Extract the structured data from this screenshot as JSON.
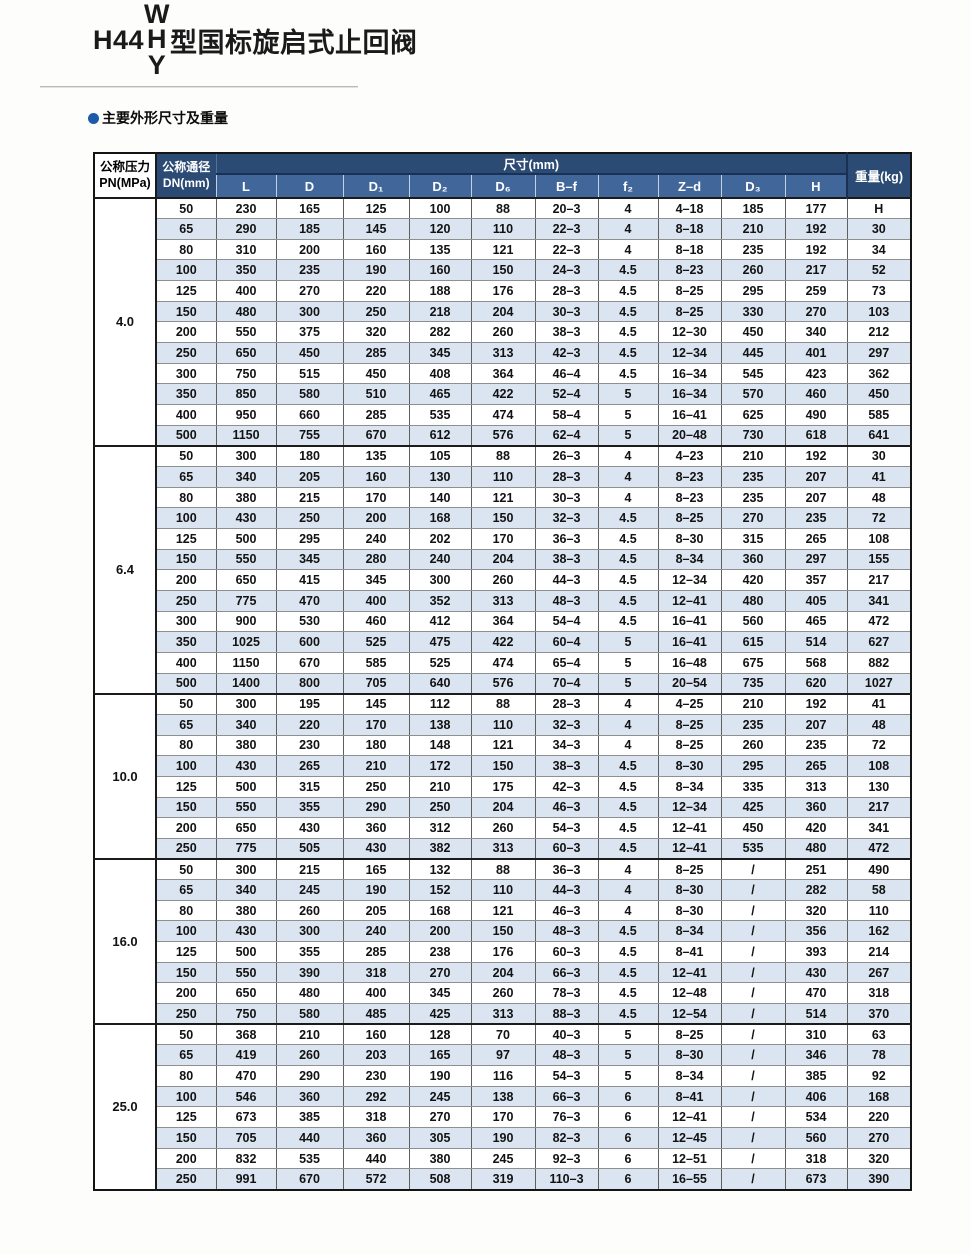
{
  "page": {
    "title_prefix": "H44",
    "title_stack": {
      "top": "W",
      "middle": "H",
      "bottom": "Y"
    },
    "title_suffix": "型国标旋启式止回阀",
    "section_heading": "主要外形尺寸及重量"
  },
  "colors": {
    "header_dark_navy": "#2b4a74",
    "header_medium_blue": "#40669a",
    "row_alternate_blue": "#dbe5f1",
    "bullet_blue": "#1c5ba8",
    "border_black": "#141414"
  },
  "icons": {
    "bullet": "filled-circle"
  },
  "table": {
    "pressure_header_line1": "公称压力",
    "pressure_header_line2": "PN(MPa)",
    "dn_header_line1": "公称通径",
    "dn_header_line2": "DN(mm)",
    "size_header": "尺寸(mm)",
    "weight_header": "重量(kg)",
    "dim_columns": [
      "L",
      "D",
      "D₁",
      "D₂",
      "D₆",
      "B–f",
      "f₂",
      "Z–d",
      "D₃",
      "H"
    ],
    "groups": [
      {
        "pressure": "4.0",
        "rows": [
          [
            "50",
            "230",
            "165",
            "125",
            "100",
            "88",
            "20–3",
            "4",
            "4–18",
            "185",
            "177",
            "H"
          ],
          [
            "65",
            "290",
            "185",
            "145",
            "120",
            "110",
            "22–3",
            "4",
            "8–18",
            "210",
            "192",
            "30"
          ],
          [
            "80",
            "310",
            "200",
            "160",
            "135",
            "121",
            "22–3",
            "4",
            "8–18",
            "235",
            "192",
            "34"
          ],
          [
            "100",
            "350",
            "235",
            "190",
            "160",
            "150",
            "24–3",
            "4.5",
            "8–23",
            "260",
            "217",
            "52"
          ],
          [
            "125",
            "400",
            "270",
            "220",
            "188",
            "176",
            "28–3",
            "4.5",
            "8–25",
            "295",
            "259",
            "73"
          ],
          [
            "150",
            "480",
            "300",
            "250",
            "218",
            "204",
            "30–3",
            "4.5",
            "8–25",
            "330",
            "270",
            "103"
          ],
          [
            "200",
            "550",
            "375",
            "320",
            "282",
            "260",
            "38–3",
            "4.5",
            "12–30",
            "450",
            "340",
            "212"
          ],
          [
            "250",
            "650",
            "450",
            "285",
            "345",
            "313",
            "42–3",
            "4.5",
            "12–34",
            "445",
            "401",
            "297"
          ],
          [
            "300",
            "750",
            "515",
            "450",
            "408",
            "364",
            "46–4",
            "4.5",
            "16–34",
            "545",
            "423",
            "362"
          ],
          [
            "350",
            "850",
            "580",
            "510",
            "465",
            "422",
            "52–4",
            "5",
            "16–34",
            "570",
            "460",
            "450"
          ],
          [
            "400",
            "950",
            "660",
            "285",
            "535",
            "474",
            "58–4",
            "5",
            "16–41",
            "625",
            "490",
            "585"
          ],
          [
            "500",
            "1150",
            "755",
            "670",
            "612",
            "576",
            "62–4",
            "5",
            "20–48",
            "730",
            "618",
            "641"
          ]
        ]
      },
      {
        "pressure": "6.4",
        "rows": [
          [
            "50",
            "300",
            "180",
            "135",
            "105",
            "88",
            "26–3",
            "4",
            "4–23",
            "210",
            "192",
            "30"
          ],
          [
            "65",
            "340",
            "205",
            "160",
            "130",
            "110",
            "28–3",
            "4",
            "8–23",
            "235",
            "207",
            "41"
          ],
          [
            "80",
            "380",
            "215",
            "170",
            "140",
            "121",
            "30–3",
            "4",
            "8–23",
            "235",
            "207",
            "48"
          ],
          [
            "100",
            "430",
            "250",
            "200",
            "168",
            "150",
            "32–3",
            "4.5",
            "8–25",
            "270",
            "235",
            "72"
          ],
          [
            "125",
            "500",
            "295",
            "240",
            "202",
            "170",
            "36–3",
            "4.5",
            "8–30",
            "315",
            "265",
            "108"
          ],
          [
            "150",
            "550",
            "345",
            "280",
            "240",
            "204",
            "38–3",
            "4.5",
            "8–34",
            "360",
            "297",
            "155"
          ],
          [
            "200",
            "650",
            "415",
            "345",
            "300",
            "260",
            "44–3",
            "4.5",
            "12–34",
            "420",
            "357",
            "217"
          ],
          [
            "250",
            "775",
            "470",
            "400",
            "352",
            "313",
            "48–3",
            "4.5",
            "12–41",
            "480",
            "405",
            "341"
          ],
          [
            "300",
            "900",
            "530",
            "460",
            "412",
            "364",
            "54–4",
            "4.5",
            "16–41",
            "560",
            "465",
            "472"
          ],
          [
            "350",
            "1025",
            "600",
            "525",
            "475",
            "422",
            "60–4",
            "5",
            "16–41",
            "615",
            "514",
            "627"
          ],
          [
            "400",
            "1150",
            "670",
            "585",
            "525",
            "474",
            "65–4",
            "5",
            "16–48",
            "675",
            "568",
            "882"
          ],
          [
            "500",
            "1400",
            "800",
            "705",
            "640",
            "576",
            "70–4",
            "5",
            "20–54",
            "735",
            "620",
            "1027"
          ]
        ]
      },
      {
        "pressure": "10.0",
        "rows": [
          [
            "50",
            "300",
            "195",
            "145",
            "112",
            "88",
            "28–3",
            "4",
            "4–25",
            "210",
            "192",
            "41"
          ],
          [
            "65",
            "340",
            "220",
            "170",
            "138",
            "110",
            "32–3",
            "4",
            "8–25",
            "235",
            "207",
            "48"
          ],
          [
            "80",
            "380",
            "230",
            "180",
            "148",
            "121",
            "34–3",
            "4",
            "8–25",
            "260",
            "235",
            "72"
          ],
          [
            "100",
            "430",
            "265",
            "210",
            "172",
            "150",
            "38–3",
            "4.5",
            "8–30",
            "295",
            "265",
            "108"
          ],
          [
            "125",
            "500",
            "315",
            "250",
            "210",
            "175",
            "42–3",
            "4.5",
            "8–34",
            "335",
            "313",
            "130"
          ],
          [
            "150",
            "550",
            "355",
            "290",
            "250",
            "204",
            "46–3",
            "4.5",
            "12–34",
            "425",
            "360",
            "217"
          ],
          [
            "200",
            "650",
            "430",
            "360",
            "312",
            "260",
            "54–3",
            "4.5",
            "12–41",
            "450",
            "420",
            "341"
          ],
          [
            "250",
            "775",
            "505",
            "430",
            "382",
            "313",
            "60–3",
            "4.5",
            "12–41",
            "535",
            "480",
            "472"
          ]
        ]
      },
      {
        "pressure": "16.0",
        "rows": [
          [
            "50",
            "300",
            "215",
            "165",
            "132",
            "88",
            "36–3",
            "4",
            "8–25",
            "/",
            "251",
            "490"
          ],
          [
            "65",
            "340",
            "245",
            "190",
            "152",
            "110",
            "44–3",
            "4",
            "8–30",
            "/",
            "282",
            "58"
          ],
          [
            "80",
            "380",
            "260",
            "205",
            "168",
            "121",
            "46–3",
            "4",
            "8–30",
            "/",
            "320",
            "110"
          ],
          [
            "100",
            "430",
            "300",
            "240",
            "200",
            "150",
            "48–3",
            "4.5",
            "8–34",
            "/",
            "356",
            "162"
          ],
          [
            "125",
            "500",
            "355",
            "285",
            "238",
            "176",
            "60–3",
            "4.5",
            "8–41",
            "/",
            "393",
            "214"
          ],
          [
            "150",
            "550",
            "390",
            "318",
            "270",
            "204",
            "66–3",
            "4.5",
            "12–41",
            "/",
            "430",
            "267"
          ],
          [
            "200",
            "650",
            "480",
            "400",
            "345",
            "260",
            "78–3",
            "4.5",
            "12–48",
            "/",
            "470",
            "318"
          ],
          [
            "250",
            "750",
            "580",
            "485",
            "425",
            "313",
            "88–3",
            "4.5",
            "12–54",
            "/",
            "514",
            "370"
          ]
        ]
      },
      {
        "pressure": "25.0",
        "rows": [
          [
            "50",
            "368",
            "210",
            "160",
            "128",
            "70",
            "40–3",
            "5",
            "8–25",
            "/",
            "310",
            "63"
          ],
          [
            "65",
            "419",
            "260",
            "203",
            "165",
            "97",
            "48–3",
            "5",
            "8–30",
            "/",
            "346",
            "78"
          ],
          [
            "80",
            "470",
            "290",
            "230",
            "190",
            "116",
            "54–3",
            "5",
            "8–34",
            "/",
            "385",
            "92"
          ],
          [
            "100",
            "546",
            "360",
            "292",
            "245",
            "138",
            "66–3",
            "6",
            "8–41",
            "/",
            "406",
            "168"
          ],
          [
            "125",
            "673",
            "385",
            "318",
            "270",
            "170",
            "76–3",
            "6",
            "12–41",
            "/",
            "534",
            "220"
          ],
          [
            "150",
            "705",
            "440",
            "360",
            "305",
            "190",
            "82–3",
            "6",
            "12–45",
            "/",
            "560",
            "270"
          ],
          [
            "200",
            "832",
            "535",
            "440",
            "380",
            "245",
            "92–3",
            "6",
            "12–51",
            "/",
            "318",
            "320"
          ],
          [
            "250",
            "991",
            "670",
            "572",
            "508",
            "319",
            "110–3",
            "6",
            "16–55",
            "/",
            "673",
            "390"
          ]
        ]
      }
    ]
  }
}
